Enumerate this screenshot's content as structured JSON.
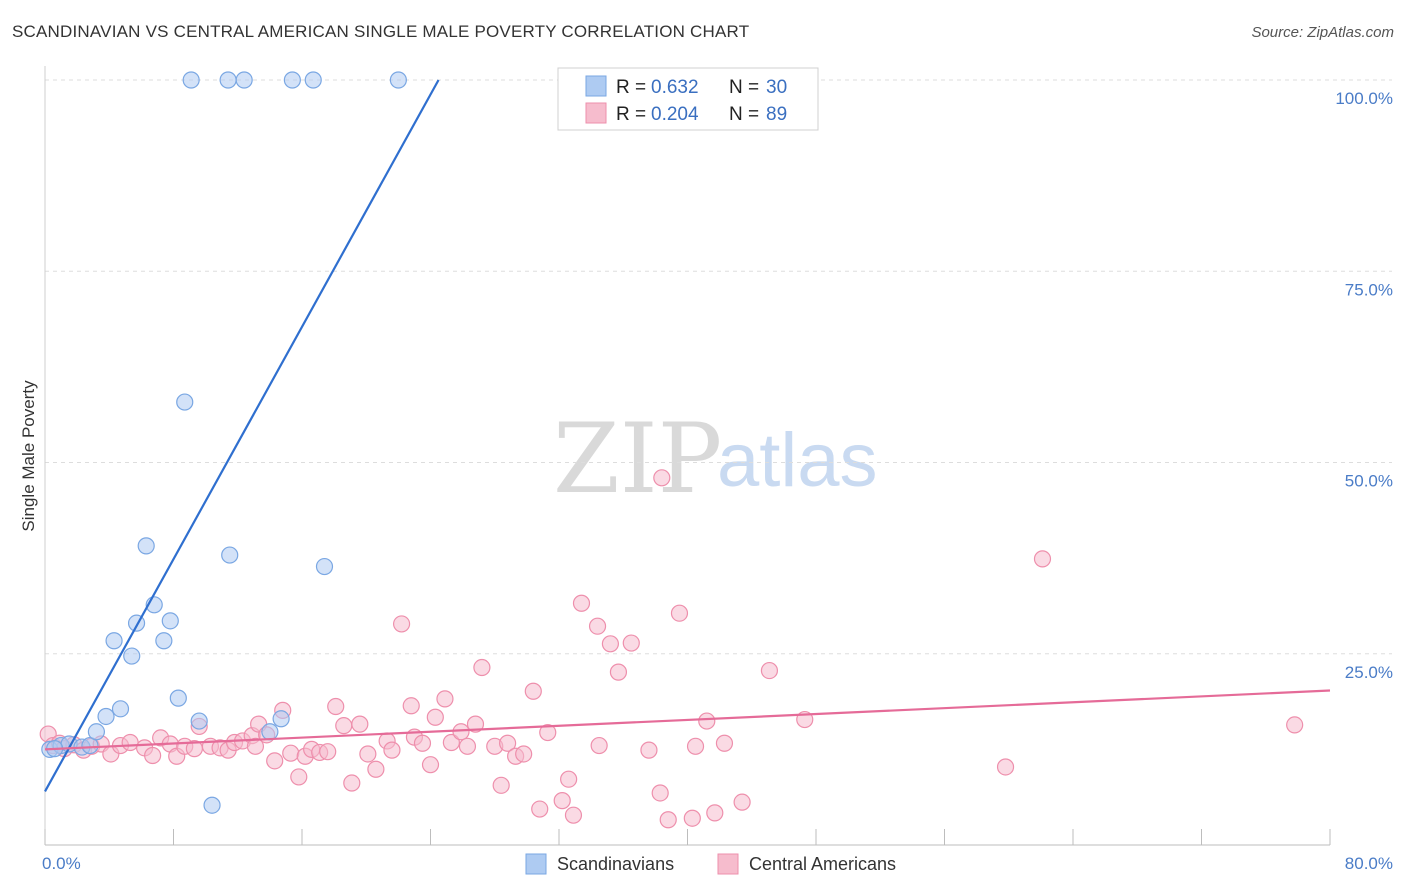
{
  "title": "SCANDINAVIAN VS CENTRAL AMERICAN SINGLE MALE POVERTY CORRELATION CHART",
  "source": "Source: ZipAtlas.com",
  "watermark": {
    "part1": "ZIP",
    "part2": "atlas"
  },
  "colors": {
    "blue_fill": "#aecbf2",
    "blue_stroke": "#7aa7e3",
    "blue_line": "#2f6fcf",
    "pink_fill": "#f6bccd",
    "pink_stroke": "#ee8fac",
    "pink_line": "#e56b98",
    "grid": "#dddddd",
    "axis_text": "#4a7cc7"
  },
  "legend": {
    "rows": [
      {
        "r_label": "R =",
        "r_value": "0.632",
        "n_label": "N =",
        "n_value": "30"
      },
      {
        "r_label": "R =",
        "r_value": "0.204",
        "n_label": "N =",
        "n_value": "89"
      }
    ]
  },
  "bottom_legend": [
    "Scandinavians",
    "Central Americans"
  ],
  "chart_data": {
    "type": "scatter",
    "title": "SCANDINAVIAN VS CENTRAL AMERICAN SINGLE MALE POVERTY CORRELATION CHART",
    "xlabel": "",
    "ylabel": "Single Male Poverty",
    "xlim": [
      0,
      80
    ],
    "ylim": [
      0,
      100
    ],
    "x_tick_labels": [
      "0.0%",
      "80.0%"
    ],
    "y_tick_labels": [
      "100.0%",
      "75.0%",
      "50.0%",
      "25.0%"
    ],
    "y_ticks": [
      100,
      75,
      50,
      25
    ],
    "grid": true,
    "legend_position": "top-center",
    "series": [
      {
        "name": "Scandinavians",
        "r": 0.632,
        "n": 30,
        "trend": {
          "x1": 0,
          "y1": 7,
          "x2": 24.5,
          "y2": 100
        },
        "points": [
          [
            0.3,
            12.5
          ],
          [
            1.0,
            13.0
          ],
          [
            1.5,
            13.2
          ],
          [
            2.3,
            12.8
          ],
          [
            2.8,
            13.0
          ],
          [
            3.2,
            14.8
          ],
          [
            3.8,
            16.8
          ],
          [
            4.7,
            17.8
          ],
          [
            4.3,
            26.7
          ],
          [
            5.4,
            24.7
          ],
          [
            5.7,
            29.0
          ],
          [
            6.3,
            39.1
          ],
          [
            6.8,
            31.4
          ],
          [
            7.4,
            26.7
          ],
          [
            7.8,
            29.3
          ],
          [
            8.3,
            19.2
          ],
          [
            8.7,
            57.9
          ],
          [
            9.6,
            16.2
          ],
          [
            10.4,
            5.2
          ],
          [
            11.5,
            37.9
          ],
          [
            14.0,
            14.8
          ],
          [
            14.7,
            16.5
          ],
          [
            17.4,
            36.4
          ],
          [
            9.1,
            100
          ],
          [
            11.4,
            100
          ],
          [
            12.4,
            100
          ],
          [
            15.4,
            100
          ],
          [
            16.7,
            100
          ],
          [
            22.0,
            100
          ],
          [
            0.6,
            12.6
          ]
        ]
      },
      {
        "name": "Central Americans",
        "r": 0.204,
        "n": 89,
        "trend": {
          "x1": 0,
          "y1": 12.5,
          "x2": 80,
          "y2": 20.2
        },
        "points": [
          [
            0.2,
            14.5
          ],
          [
            0.5,
            13.0
          ],
          [
            0.9,
            13.3
          ],
          [
            1.2,
            12.6
          ],
          [
            1.8,
            13.1
          ],
          [
            2.4,
            12.4
          ],
          [
            2.9,
            12.9
          ],
          [
            3.5,
            13.2
          ],
          [
            4.1,
            11.9
          ],
          [
            4.7,
            13.0
          ],
          [
            5.3,
            13.4
          ],
          [
            6.2,
            12.7
          ],
          [
            6.7,
            11.7
          ],
          [
            7.2,
            14.0
          ],
          [
            7.8,
            13.2
          ],
          [
            8.2,
            11.6
          ],
          [
            8.7,
            12.9
          ],
          [
            9.3,
            12.6
          ],
          [
            9.6,
            15.5
          ],
          [
            10.3,
            12.9
          ],
          [
            10.9,
            12.7
          ],
          [
            11.4,
            12.4
          ],
          [
            11.8,
            13.4
          ],
          [
            12.3,
            13.6
          ],
          [
            12.9,
            14.3
          ],
          [
            13.3,
            15.8
          ],
          [
            13.8,
            14.4
          ],
          [
            14.3,
            11.0
          ],
          [
            14.8,
            17.6
          ],
          [
            15.3,
            12.0
          ],
          [
            15.8,
            8.9
          ],
          [
            16.2,
            11.6
          ],
          [
            16.6,
            12.5
          ],
          [
            17.1,
            12.1
          ],
          [
            17.6,
            12.2
          ],
          [
            18.1,
            18.1
          ],
          [
            18.6,
            15.6
          ],
          [
            19.1,
            8.1
          ],
          [
            19.6,
            15.8
          ],
          [
            20.1,
            11.9
          ],
          [
            20.6,
            9.9
          ],
          [
            21.3,
            13.6
          ],
          [
            21.6,
            12.4
          ],
          [
            22.2,
            28.9
          ],
          [
            22.8,
            18.2
          ],
          [
            23.0,
            14.1
          ],
          [
            23.5,
            13.3
          ],
          [
            24.0,
            10.5
          ],
          [
            24.3,
            16.7
          ],
          [
            24.9,
            19.1
          ],
          [
            25.3,
            13.4
          ],
          [
            25.9,
            14.8
          ],
          [
            26.3,
            12.9
          ],
          [
            26.8,
            15.8
          ],
          [
            27.2,
            23.2
          ],
          [
            28.0,
            12.9
          ],
          [
            28.4,
            7.8
          ],
          [
            28.8,
            13.3
          ],
          [
            29.3,
            11.6
          ],
          [
            29.8,
            11.9
          ],
          [
            30.4,
            20.1
          ],
          [
            30.8,
            4.7
          ],
          [
            31.3,
            14.7
          ],
          [
            32.2,
            5.8
          ],
          [
            32.6,
            8.6
          ],
          [
            32.9,
            3.9
          ],
          [
            33.4,
            31.6
          ],
          [
            34.4,
            28.6
          ],
          [
            34.5,
            13.0
          ],
          [
            35.2,
            26.3
          ],
          [
            35.7,
            22.6
          ],
          [
            36.5,
            26.4
          ],
          [
            37.6,
            12.4
          ],
          [
            38.3,
            6.8
          ],
          [
            39.5,
            30.3
          ],
          [
            38.8,
            3.3
          ],
          [
            40.3,
            3.5
          ],
          [
            40.5,
            12.9
          ],
          [
            41.2,
            16.2
          ],
          [
            41.7,
            4.2
          ],
          [
            42.3,
            13.3
          ],
          [
            43.4,
            5.6
          ],
          [
            45.1,
            22.8
          ],
          [
            47.3,
            16.4
          ],
          [
            38.4,
            48.0
          ],
          [
            62.1,
            37.4
          ],
          [
            59.8,
            10.2
          ],
          [
            77.8,
            15.7
          ],
          [
            13.1,
            12.9
          ]
        ]
      }
    ]
  }
}
